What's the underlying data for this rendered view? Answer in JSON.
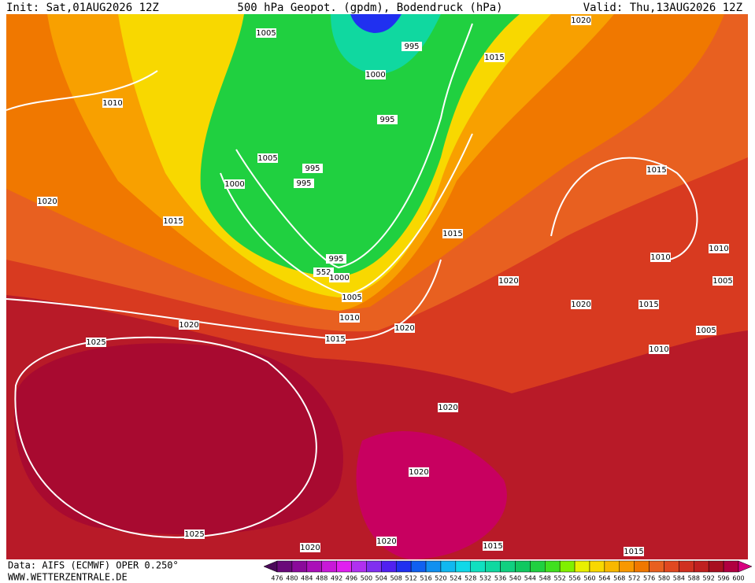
{
  "header": {
    "init": "Init: Sat,01AUG2026 12Z",
    "title": "500 hPa Geopot. (gpdm), Bodendruck (hPa)",
    "valid": "Valid: Thu,13AUG2026 12Z"
  },
  "footer": {
    "source": "Data: AIFS (ECMWF) OPER 0.250°",
    "website": "WWW.WETTERZENTRALE.DE"
  },
  "isobar_labels": [
    "1005",
    "995",
    "1000",
    "995",
    "1005",
    "995",
    "995",
    "1000",
    "1010",
    "1020",
    "1015",
    "1015",
    "995",
    "552",
    "1000",
    "1005",
    "1010",
    "1015",
    "1020",
    "1025",
    "1020",
    "1020",
    "1020",
    "1015",
    "1010",
    "1010",
    "1005",
    "1005",
    "1010",
    "1015",
    "1015",
    "1020",
    "1020",
    "1020",
    "1020",
    "1020",
    "1015",
    "1015",
    "1025"
  ],
  "colorbar": {
    "labels": [
      476,
      480,
      484,
      488,
      492,
      496,
      500,
      504,
      508,
      512,
      516,
      520,
      524,
      528,
      532,
      536,
      540,
      544,
      548,
      552,
      556,
      560,
      564,
      568,
      572,
      576,
      580,
      584,
      588,
      592,
      596,
      600
    ],
    "colors": [
      "#4b0a5a",
      "#6a0a7a",
      "#8a0a9a",
      "#aa10b8",
      "#c818d8",
      "#e020f0",
      "#b030f0",
      "#8030f0",
      "#5020f0",
      "#2030f0",
      "#1060f0",
      "#1090f0",
      "#10b8f0",
      "#10d8e8",
      "#10e0c0",
      "#10d8a0",
      "#10d080",
      "#10c860",
      "#20d040",
      "#40e020",
      "#80f000",
      "#e8f000",
      "#f8d800",
      "#f8b800",
      "#f89800",
      "#f07800",
      "#e86020",
      "#e04820",
      "#d03020",
      "#c02020",
      "#a81020",
      "#b00040",
      "#d80080"
    ]
  }
}
